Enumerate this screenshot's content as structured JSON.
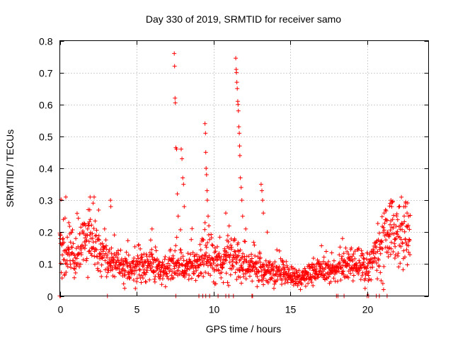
{
  "chart_data": {
    "type": "scatter",
    "title": "Day 330 of 2019, SRMTID for receiver samo",
    "xlabel": "GPS time / hours",
    "ylabel": "SRMTID / TECUs",
    "xlim": [
      0,
      24
    ],
    "ylim": [
      0,
      0.8
    ],
    "xticks": [
      0,
      5,
      10,
      15,
      20
    ],
    "xtick_labels": [
      "0",
      "5",
      "10",
      "15",
      "20"
    ],
    "yticks": [
      0,
      0.1,
      0.2,
      0.3,
      0.4,
      0.5,
      0.6,
      0.7,
      0.8
    ],
    "ytick_labels": [
      "0",
      "0.1",
      "0.2",
      "0.3",
      "0.4",
      "0.5",
      "0.6",
      "0.7",
      "0.8"
    ],
    "grid": true,
    "marker": "+",
    "color": "#ff0000",
    "baseline": [
      [
        0,
        0.16
      ],
      [
        0.5,
        0.15
      ],
      [
        1,
        0.12
      ],
      [
        1.5,
        0.16
      ],
      [
        2,
        0.18
      ],
      [
        2.5,
        0.14
      ],
      [
        3,
        0.12
      ],
      [
        3.5,
        0.11
      ],
      [
        4,
        0.09
      ],
      [
        4.5,
        0.085
      ],
      [
        5,
        0.09
      ],
      [
        5.5,
        0.09
      ],
      [
        6,
        0.11
      ],
      [
        6.5,
        0.08
      ],
      [
        7,
        0.08
      ],
      [
        7.5,
        0.1
      ],
      [
        8,
        0.09
      ],
      [
        8.5,
        0.1
      ],
      [
        9,
        0.1
      ],
      [
        9.5,
        0.14
      ],
      [
        10,
        0.1
      ],
      [
        10.5,
        0.13
      ],
      [
        11,
        0.12
      ],
      [
        11.5,
        0.12
      ],
      [
        12,
        0.09
      ],
      [
        12.5,
        0.09
      ],
      [
        13,
        0.1
      ],
      [
        13.5,
        0.07
      ],
      [
        14,
        0.075
      ],
      [
        14.5,
        0.08
      ],
      [
        15,
        0.06
      ],
      [
        15.5,
        0.05
      ],
      [
        16,
        0.06
      ],
      [
        16.5,
        0.07
      ],
      [
        17,
        0.08
      ],
      [
        17.5,
        0.08
      ],
      [
        18,
        0.08
      ],
      [
        18.5,
        0.1
      ],
      [
        19,
        0.1
      ],
      [
        19.5,
        0.1
      ],
      [
        20,
        0.08
      ],
      [
        20.5,
        0.12
      ],
      [
        21,
        0.18
      ],
      [
        21.5,
        0.2
      ],
      [
        22,
        0.18
      ],
      [
        22.5,
        0.2
      ],
      [
        22.8,
        0.16
      ]
    ],
    "spikes": [
      [
        0.05,
        0.19
      ],
      [
        0.75,
        0.2
      ],
      [
        1.9,
        0.22
      ],
      [
        1.95,
        0.27
      ],
      [
        3.3,
        0.3
      ],
      [
        3.32,
        0.28
      ],
      [
        6,
        0.21
      ],
      [
        7.45,
        0.76
      ],
      [
        7.47,
        0.72
      ],
      [
        7.5,
        0.62
      ],
      [
        7.52,
        0.605
      ],
      [
        7.55,
        0.465
      ],
      [
        7.6,
        0.46
      ],
      [
        7.65,
        0.32
      ],
      [
        7.7,
        0.25
      ],
      [
        7.9,
        0.46
      ],
      [
        7.95,
        0.43
      ],
      [
        8,
        0.37
      ],
      [
        8.05,
        0.35
      ],
      [
        8.1,
        0.28
      ],
      [
        9.45,
        0.54
      ],
      [
        9.48,
        0.51
      ],
      [
        9.5,
        0.45
      ],
      [
        9.52,
        0.4
      ],
      [
        9.55,
        0.38
      ],
      [
        9.58,
        0.33
      ],
      [
        9.6,
        0.3
      ],
      [
        9.65,
        0.25
      ],
      [
        9.7,
        0.22
      ],
      [
        10.8,
        0.26
      ],
      [
        11.45,
        0.745
      ],
      [
        11.48,
        0.71
      ],
      [
        11.5,
        0.7
      ],
      [
        11.52,
        0.67
      ],
      [
        11.55,
        0.65
      ],
      [
        11.58,
        0.61
      ],
      [
        11.6,
        0.6
      ],
      [
        11.62,
        0.58
      ],
      [
        11.65,
        0.53
      ],
      [
        11.68,
        0.51
      ],
      [
        11.7,
        0.47
      ],
      [
        11.72,
        0.44
      ],
      [
        11.75,
        0.37
      ],
      [
        11.8,
        0.34
      ],
      [
        11.85,
        0.3
      ],
      [
        11.9,
        0.25
      ],
      [
        12.1,
        0.21
      ],
      [
        13.1,
        0.35
      ],
      [
        13.15,
        0.33
      ],
      [
        13.2,
        0.3
      ],
      [
        13.25,
        0.26
      ],
      [
        13.5,
        0.2
      ],
      [
        18.4,
        0.18
      ],
      [
        21.2,
        0.27
      ],
      [
        21.5,
        0.29
      ],
      [
        21.55,
        0.3
      ],
      [
        21.6,
        0.28
      ],
      [
        22.5,
        0.28
      ],
      [
        22.6,
        0.26
      ],
      [
        22.7,
        0.25
      ]
    ],
    "zero_points": [
      0.0,
      0.05,
      3.1,
      7.55,
      9.05,
      9.3,
      9.5,
      9.75,
      10.3,
      10.8,
      11.0,
      11.3,
      12.5,
      12.55,
      18.0,
      18.1,
      18.5,
      20.0,
      20.1,
      20.6,
      20.8,
      21.3
    ],
    "n_points": 1400,
    "seed": 20191126
  }
}
